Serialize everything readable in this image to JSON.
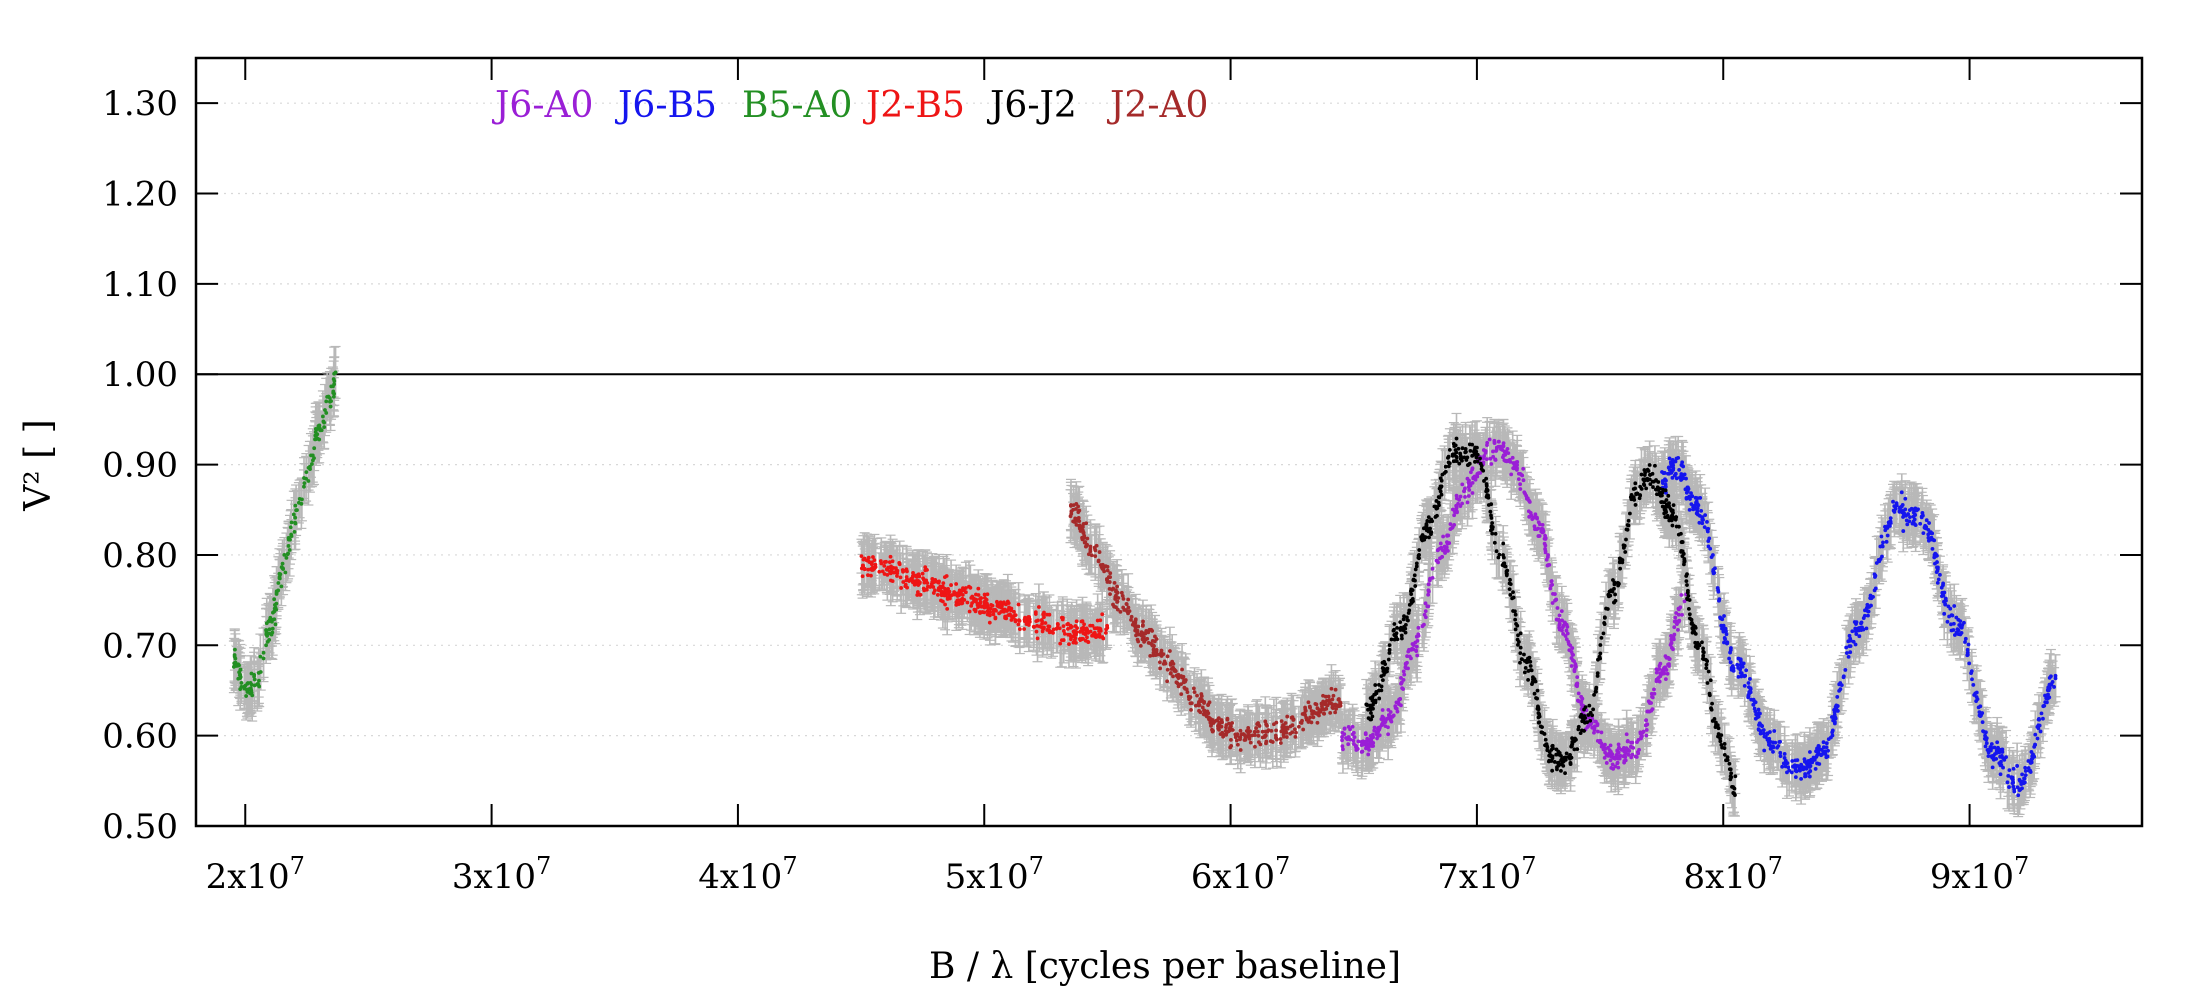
{
  "chart_data": {
    "type": "scatter",
    "title": "",
    "xlabel": "B / λ [cycles per baseline]",
    "ylabel": "V² [ ]",
    "xlim": [
      18000000,
      97000000
    ],
    "ylim": [
      0.5,
      1.35
    ],
    "x_ticks": [
      20000000,
      30000000,
      40000000,
      50000000,
      60000000,
      70000000,
      80000000,
      90000000
    ],
    "x_tick_labels": [
      {
        "mant": "2x10",
        "exp": "7"
      },
      {
        "mant": "3x10",
        "exp": "7"
      },
      {
        "mant": "4x10",
        "exp": "7"
      },
      {
        "mant": "5x10",
        "exp": "7"
      },
      {
        "mant": "6x10",
        "exp": "7"
      },
      {
        "mant": "7x10",
        "exp": "7"
      },
      {
        "mant": "8x10",
        "exp": "7"
      },
      {
        "mant": "9x10",
        "exp": "7"
      }
    ],
    "y_ticks": [
      0.5,
      0.6,
      0.7,
      0.8,
      0.9,
      1.0,
      1.1,
      1.2,
      1.3
    ],
    "y_tick_labels": [
      "0.50",
      "0.60",
      "0.70",
      "0.80",
      "0.90",
      "1.00",
      "1.10",
      "1.20",
      "1.30"
    ],
    "reference_line": {
      "y": 1.0
    },
    "grid": "horizontal-dotted",
    "legend_position": "top-left inside",
    "error_bar_color": "#b8b8b8",
    "series": [
      {
        "name": "J6-A0",
        "color": "#9a1fd6",
        "x": [
          64.5,
          65.5,
          66.5,
          67.5,
          68.5,
          69.5,
          70.5,
          71.0,
          71.5,
          72.5,
          73.5,
          74.5,
          75.5,
          76.5,
          77.5,
          78.5
        ],
        "y": [
          0.6,
          0.59,
          0.62,
          0.7,
          0.8,
          0.87,
          0.915,
          0.92,
          0.9,
          0.83,
          0.72,
          0.62,
          0.575,
          0.59,
          0.67,
          0.75
        ]
      },
      {
        "name": "J6-B5",
        "color": "#1515ee",
        "x": [
          77.5,
          78.0,
          79.0,
          80.5,
          82.0,
          83.0,
          84.0,
          85.5,
          87.0,
          88.0,
          89.5,
          91.0,
          92.0,
          93.5
        ],
        "y": [
          0.88,
          0.9,
          0.85,
          0.68,
          0.59,
          0.56,
          0.58,
          0.72,
          0.85,
          0.84,
          0.72,
          0.58,
          0.545,
          0.66
        ]
      },
      {
        "name": "B5-A0",
        "color": "#238f23",
        "x": [
          19.5,
          20.0,
          20.5,
          21.0,
          21.5,
          22.0,
          22.5,
          23.0,
          23.5,
          23.7
        ],
        "y": [
          0.69,
          0.65,
          0.66,
          0.72,
          0.78,
          0.84,
          0.89,
          0.94,
          0.98,
          1.0
        ]
      },
      {
        "name": "J2-B5",
        "color": "#ee1515",
        "x": [
          45.0,
          46.0,
          47.5,
          49.0,
          50.5,
          52.0,
          53.5,
          54.5,
          55.0
        ],
        "y": [
          0.79,
          0.785,
          0.77,
          0.755,
          0.74,
          0.725,
          0.715,
          0.715,
          0.72
        ]
      },
      {
        "name": "J6-J2",
        "color": "#000000",
        "x": [
          65.5,
          67.0,
          68.0,
          69.0,
          70.0,
          71.0,
          72.0,
          73.0,
          73.5,
          74.5,
          75.5,
          76.5,
          77.0,
          78.0,
          79.0,
          80.0,
          80.5
        ],
        "y": [
          0.63,
          0.72,
          0.83,
          0.91,
          0.91,
          0.8,
          0.68,
          0.58,
          0.57,
          0.62,
          0.76,
          0.87,
          0.89,
          0.84,
          0.7,
          0.59,
          0.54
        ]
      },
      {
        "name": "J2-A0",
        "color": "#a52a2a",
        "x": [
          53.5,
          54.5,
          55.5,
          56.5,
          57.5,
          58.5,
          59.5,
          60.5,
          61.5,
          62.5,
          63.5,
          64.5
        ],
        "y": [
          0.85,
          0.8,
          0.75,
          0.71,
          0.68,
          0.64,
          0.61,
          0.6,
          0.6,
          0.61,
          0.63,
          0.64
        ]
      }
    ],
    "x_values_unit_note": "series x values are in units of 1e6 cycles per baseline"
  }
}
